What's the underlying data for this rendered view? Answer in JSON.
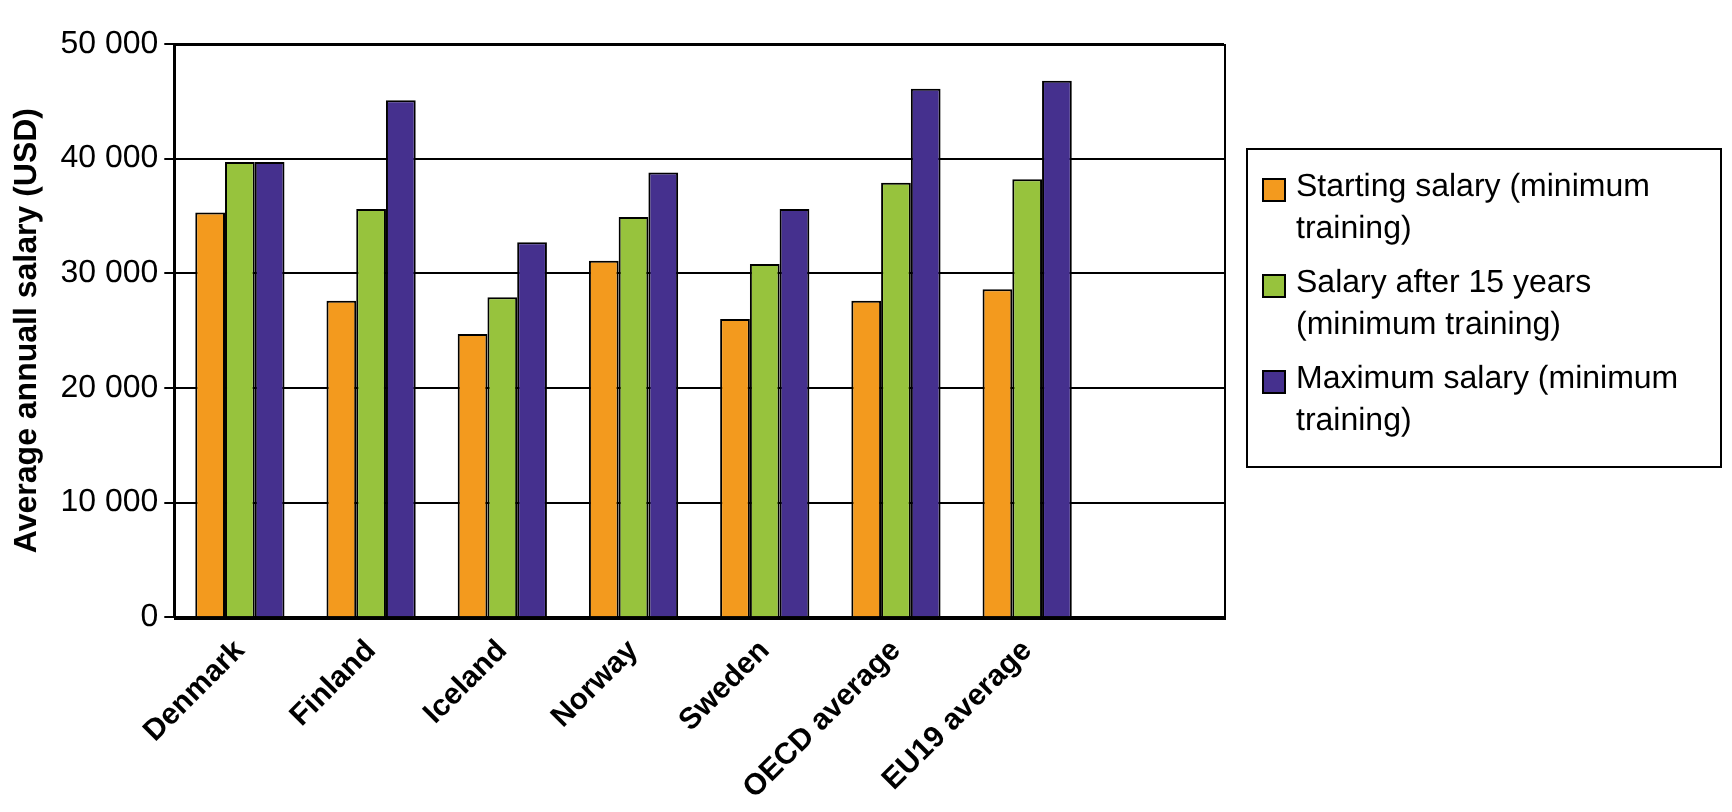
{
  "chart_data": {
    "type": "bar",
    "ylabel": "Average annuall salary (USD)",
    "categories": [
      "Denmark",
      "Finland",
      "Iceland",
      "Norway",
      "Sweden",
      "OECD average",
      "EU19 average",
      null
    ],
    "series": [
      {
        "name": "Starting salary (minimum training)",
        "color": "#f39a1e",
        "values": [
          35300,
          27600,
          24700,
          31100,
          26000,
          27600,
          28600,
          null
        ]
      },
      {
        "name": "Salary after 15 years (minimum training)",
        "color": "#97c33d",
        "values": [
          39700,
          35600,
          27900,
          34900,
          30800,
          37900,
          38200,
          null
        ]
      },
      {
        "name": "Maximum salary (minimum training)",
        "color": "#45308e",
        "values": [
          39700,
          45100,
          32700,
          38800,
          35600,
          46100,
          46800,
          null
        ]
      }
    ],
    "ylim": [
      0,
      50000
    ],
    "yticks": [
      0,
      {
        "value": 10000,
        "label": "10 000"
      },
      {
        "value": 20000,
        "label": "20 000"
      },
      {
        "value": 30000,
        "label": "30 000"
      },
      {
        "value": 40000,
        "label": "40 000"
      },
      {
        "value": 50000,
        "label": "50 000"
      }
    ],
    "grid": "y",
    "legend": "right"
  }
}
